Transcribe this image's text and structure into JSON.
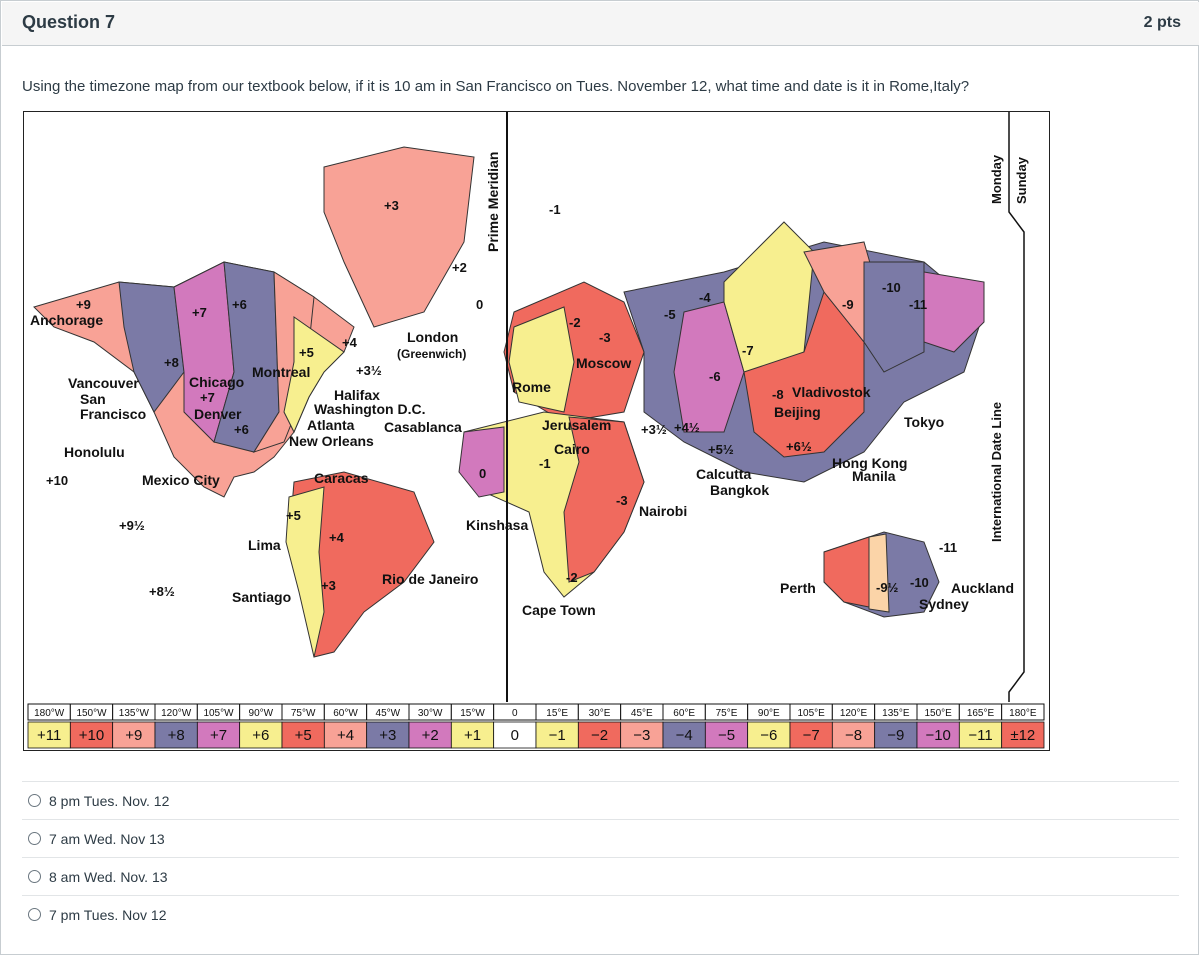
{
  "question": {
    "title": "Question 7",
    "points": "2 pts",
    "text": "Using the timezone map from our textbook below, if it is 10 am in San Francisco on Tues. November 12, what time and date is it in Rome,Italy?"
  },
  "map": {
    "prime_meridian_label": "Prime Meridian",
    "date_line_label": "International Date Line",
    "monday_label": "Monday",
    "sunday_label": "Sunday",
    "cities": [
      "Anchorage",
      "Vancouver",
      "San",
      "Francisco",
      "Honolulu",
      "Mexico City",
      "Chicago",
      "Denver",
      "Montreal",
      "Halifax",
      "Washington D.C.",
      "Atlanta",
      "New Orleans",
      "Casablanca",
      "London",
      "(Greenwich)",
      "Caracas",
      "Lima",
      "Santiago",
      "Rio de Janeiro",
      "Kinshasa",
      "Cape Town",
      "Rome",
      "Jerusalem",
      "Cairo",
      "Moscow",
      "Nairobi",
      "Calcutta",
      "Bangkok",
      "Beijing",
      "Vladivostok",
      "Tokyo",
      "Hong Kong",
      "Manila",
      "Perth",
      "Sydney",
      "Auckland"
    ],
    "offset_labels": [
      "+9",
      "+8",
      "+7",
      "+6",
      "+5",
      "+4",
      "+3",
      "+3½",
      "+2",
      "0",
      "+10",
      "+9½",
      "+8½",
      "+7",
      "+6",
      "+5",
      "+4",
      "+3",
      "-1",
      "-2",
      "-3",
      "-4",
      "-5",
      "-6",
      "-7",
      "-8",
      "-9",
      "-10",
      "-11",
      "+5½",
      "+6½",
      "+3½",
      "+4½",
      "-1",
      "0",
      "-2",
      "-3",
      "-9½",
      "-10",
      "-11"
    ],
    "longitudes": [
      "180°W",
      "150°W",
      "135°W",
      "120°W",
      "105°W",
      "90°W",
      "75°W",
      "60°W",
      "45°W",
      "30°W",
      "15°W",
      "0",
      "15°E",
      "30°E",
      "45°E",
      "60°E",
      "75°E",
      "90°E",
      "105°E",
      "120°E",
      "135°E",
      "150°E",
      "165°E",
      "180°E"
    ],
    "zones": [
      "+11",
      "+10",
      "+9",
      "+8",
      "+7",
      "+6",
      "+5",
      "+4",
      "+3",
      "+2",
      "+1",
      "0",
      "−1",
      "−2",
      "−3",
      "−4",
      "−5",
      "−6",
      "−7",
      "−8",
      "−9",
      "−10",
      "−11",
      "±12"
    ],
    "zone_colors": [
      "#f7ef8f",
      "#f06a5e",
      "#f8a296",
      "#7b7aa6",
      "#d279bd",
      "#f7ef8f",
      "#f06a5e",
      "#f8a296",
      "#7b7aa6",
      "#d279bd",
      "#f7ef8f",
      "#ffffff",
      "#f7ef8f",
      "#f06a5e",
      "#f8a296",
      "#7b7aa6",
      "#d279bd",
      "#f7ef8f",
      "#f06a5e",
      "#f8a296",
      "#7b7aa6",
      "#d279bd",
      "#f7ef8f",
      "#f06a5e"
    ]
  },
  "answers": [
    {
      "label": "8 pm Tues. Nov. 12"
    },
    {
      "label": "7 am Wed. Nov 13"
    },
    {
      "label": "8 am Wed. Nov. 13"
    },
    {
      "label": "7 pm Tues. Nov 12"
    }
  ]
}
